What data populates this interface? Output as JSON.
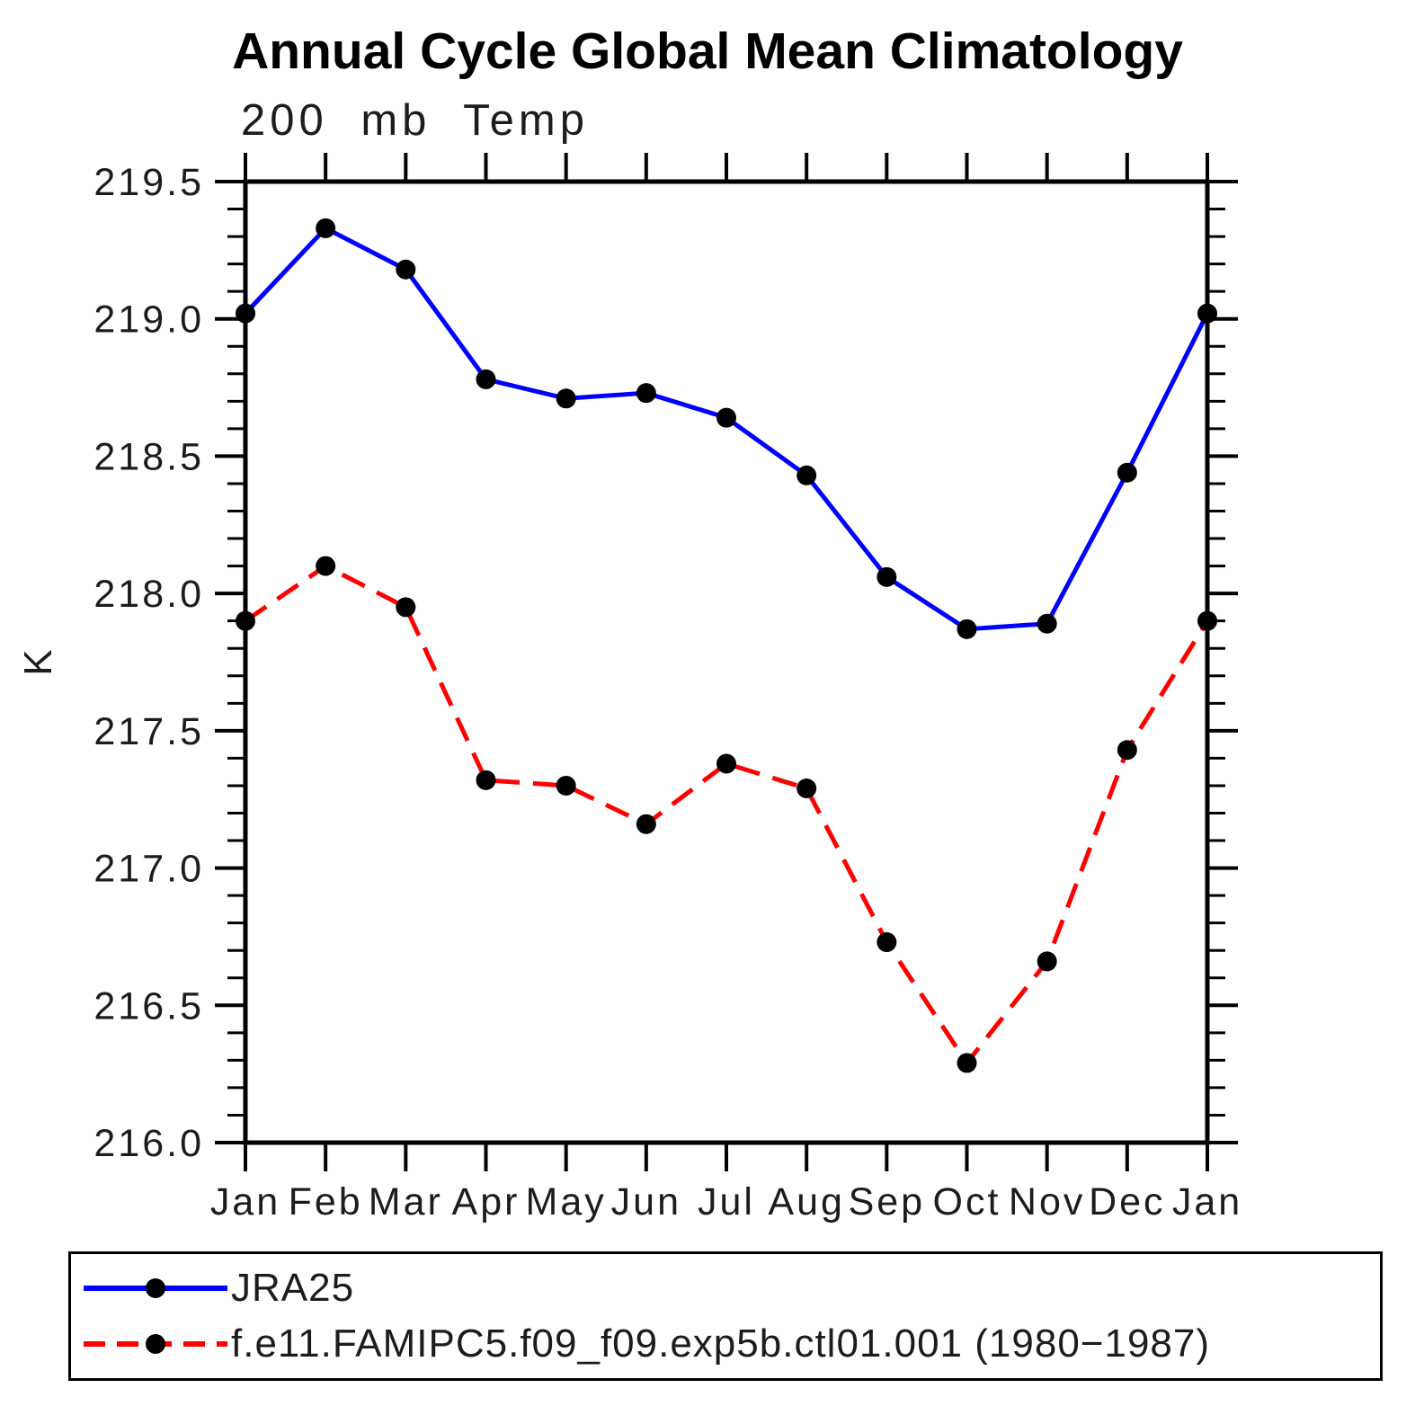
{
  "header": {
    "title": "Annual Cycle Global Mean Climatology",
    "subtitle": "200 mb Temp"
  },
  "chart_data": {
    "type": "line",
    "title": "Annual Cycle Global Mean Climatology",
    "subtitle": "200 mb Temp",
    "xlabel": "",
    "ylabel": "K",
    "x_categories": [
      "Jan",
      "Feb",
      "Mar",
      "Apr",
      "May",
      "Jun",
      "Jul",
      "Aug",
      "Sep",
      "Oct",
      "Nov",
      "Dec",
      "Jan"
    ],
    "ylim": [
      216.0,
      219.5
    ],
    "y_major_step": 0.5,
    "y_minor_step": 0.1,
    "y_tick_labels": [
      "216.0",
      "216.5",
      "217.0",
      "217.5",
      "218.0",
      "218.5",
      "219.0",
      "219.5"
    ],
    "grid": false,
    "axis_color": "#000000",
    "legend_position": "bottom-box",
    "series": [
      {
        "name": "JRA25",
        "color": "#0000ff",
        "line_style": "solid",
        "marker": "circle",
        "marker_color": "#000000",
        "values": [
          219.02,
          219.33,
          219.18,
          218.78,
          218.71,
          218.73,
          218.64,
          218.43,
          218.06,
          217.87,
          217.89,
          218.44,
          219.02
        ]
      },
      {
        "name": "f.e11.FAMIPC5.f09_f09.exp5b.ctl01.001 (1980−1987)",
        "color": "#ff0000",
        "line_style": "dashed",
        "marker": "circle",
        "marker_color": "#000000",
        "values": [
          217.9,
          218.1,
          217.95,
          217.32,
          217.3,
          217.16,
          217.38,
          217.29,
          216.73,
          216.29,
          216.66,
          217.43,
          217.9
        ]
      }
    ]
  }
}
